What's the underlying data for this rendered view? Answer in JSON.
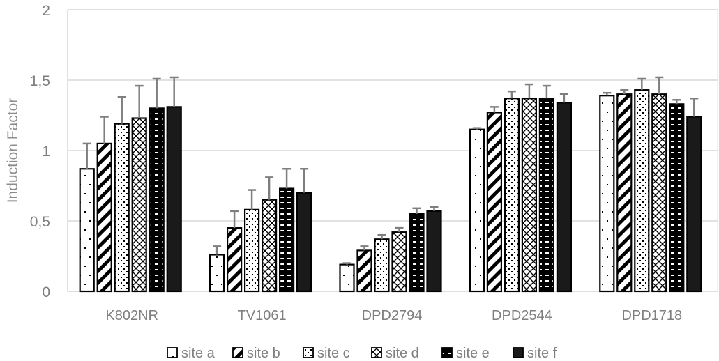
{
  "chart_data": {
    "type": "bar",
    "title": "",
    "xlabel": "",
    "ylabel": "Induction Factor",
    "ylim": [
      0,
      2
    ],
    "yticks": [
      0,
      0.5,
      1,
      1.5,
      2
    ],
    "ytick_labels": [
      "0",
      "0,5",
      "1",
      "1,5",
      "2"
    ],
    "grid": true,
    "legend_position": "bottom",
    "categories": [
      "K802NR",
      "TV1061",
      "DPD2794",
      "DPD2544",
      "DPD1718"
    ],
    "series": [
      {
        "name": "site a",
        "pattern": "sparse-dots",
        "values": [
          0.87,
          0.26,
          0.19,
          1.15,
          1.39
        ],
        "error": [
          0.18,
          0.06,
          0.01,
          0.01,
          0.02
        ]
      },
      {
        "name": "site b",
        "pattern": "diagonal-stripes",
        "values": [
          1.05,
          0.45,
          0.29,
          1.27,
          1.4
        ],
        "error": [
          0.19,
          0.12,
          0.03,
          0.04,
          0.03
        ]
      },
      {
        "name": "site c",
        "pattern": "dense-dots",
        "values": [
          1.19,
          0.58,
          0.37,
          1.37,
          1.43
        ],
        "error": [
          0.19,
          0.14,
          0.03,
          0.05,
          0.08
        ]
      },
      {
        "name": "site d",
        "pattern": "diamond-lattice",
        "values": [
          1.23,
          0.65,
          0.42,
          1.37,
          1.4
        ],
        "error": [
          0.23,
          0.16,
          0.03,
          0.1,
          0.12
        ]
      },
      {
        "name": "site e",
        "pattern": "black-with-white-dashes",
        "values": [
          1.3,
          0.73,
          0.55,
          1.37,
          1.33
        ],
        "error": [
          0.21,
          0.14,
          0.04,
          0.09,
          0.03
        ]
      },
      {
        "name": "site f",
        "pattern": "solid-black",
        "values": [
          1.31,
          0.7,
          0.57,
          1.34,
          1.24
        ],
        "error": [
          0.21,
          0.17,
          0.03,
          0.06,
          0.13
        ]
      }
    ]
  },
  "style": {
    "gridline_color": "#d9d9d9",
    "axis_color": "#d9d9d9",
    "bar_outline": "#000000",
    "error_bar_color": "#7f7f7f",
    "text_color": "#7f7f7f"
  }
}
